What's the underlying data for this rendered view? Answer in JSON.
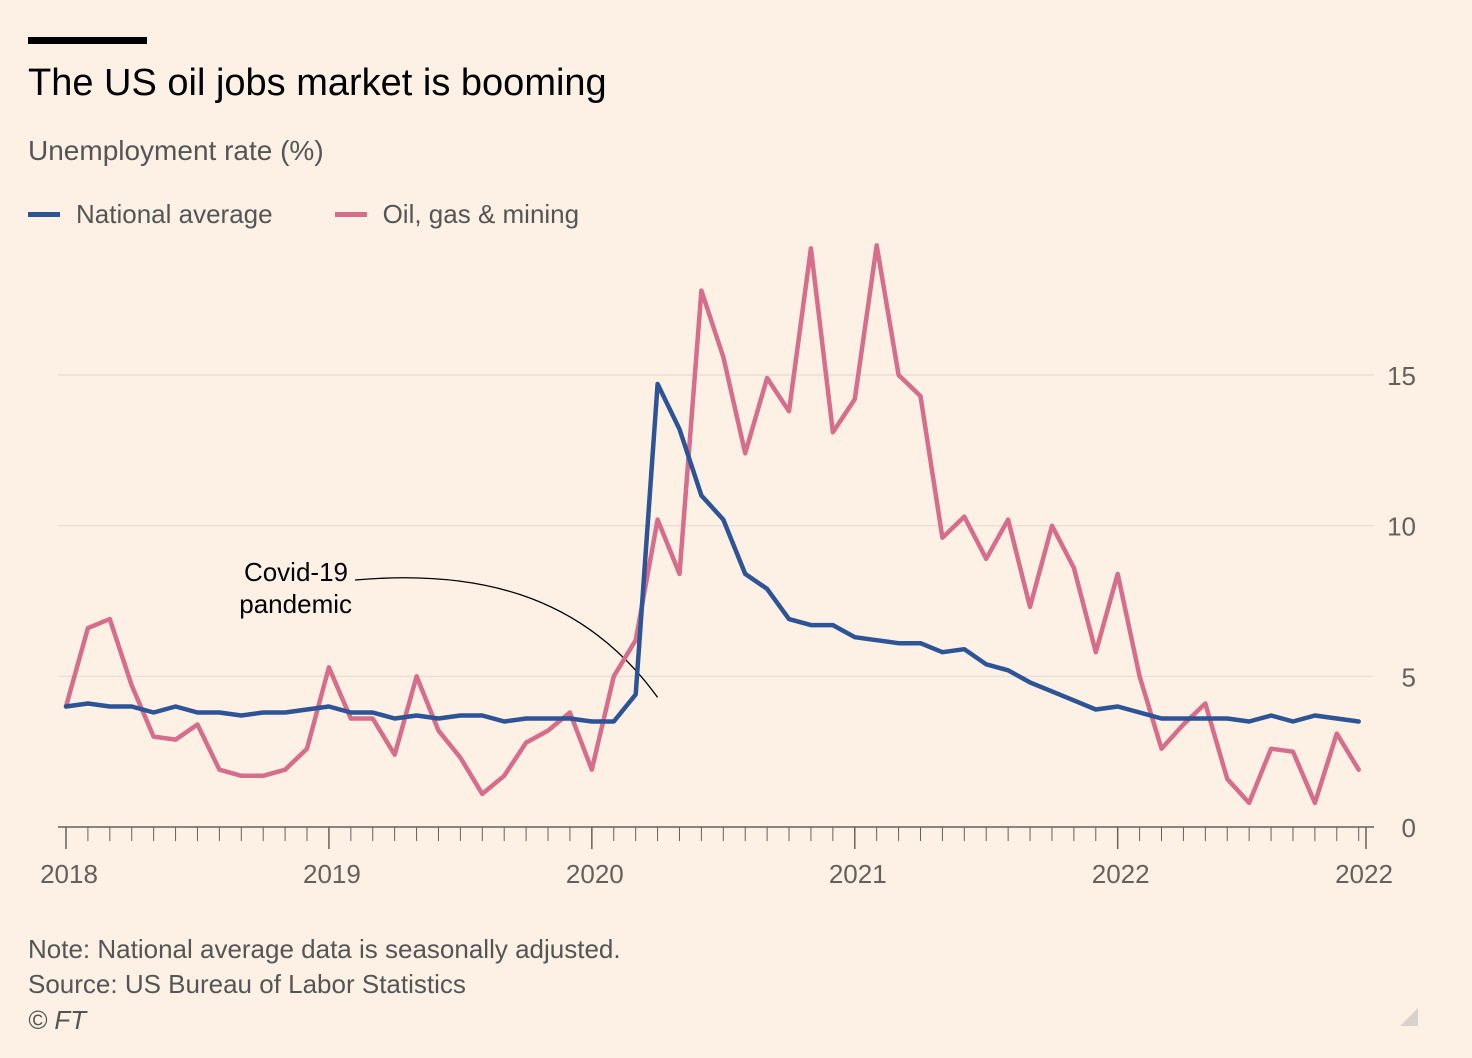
{
  "header": {
    "title": "The US oil jobs market is booming",
    "subtitle": "Unemployment rate (%)"
  },
  "legend": {
    "items": [
      {
        "label": "National average",
        "color": "#2d5496"
      },
      {
        "label": "Oil, gas & mining",
        "color": "#d66d8b"
      }
    ]
  },
  "annotation": {
    "line1": "Covid-19",
    "line2": "pandemic",
    "x": 81,
    "y": 4.3
  },
  "footer": {
    "note": "Note: National average data is seasonally adjusted.",
    "source": "Source: US Bureau of Labor Statistics",
    "copyright": "© FT"
  },
  "chart_data": {
    "type": "line",
    "x_unit": "months since Jan 2018",
    "x_ticks": [
      {
        "value": 0,
        "label": "2018"
      },
      {
        "value": 36,
        "label": "2019"
      },
      {
        "value": 72,
        "label": "2020"
      },
      {
        "value": 108,
        "label": "2021"
      },
      {
        "value": 144,
        "label": "2022"
      },
      {
        "value": 178,
        "label": "2022"
      }
    ],
    "xlim": [
      0,
      178
    ],
    "ylim": [
      0,
      20
    ],
    "y_ticks": [
      0,
      5,
      10,
      15
    ],
    "y_axis_side": "right",
    "grid": true,
    "series": [
      {
        "name": "National average",
        "color": "#2d5496",
        "x": [
          0,
          3,
          6,
          9,
          12,
          15,
          18,
          21,
          24,
          27,
          30,
          33,
          36,
          39,
          42,
          45,
          48,
          51,
          54,
          57,
          60,
          63,
          66,
          69,
          72,
          75,
          78,
          81,
          84,
          87,
          90,
          93,
          96,
          99,
          102,
          105,
          108,
          111,
          114,
          117,
          120,
          123,
          126,
          129,
          132,
          135,
          138,
          141,
          144,
          147,
          150,
          153,
          156,
          159,
          162,
          165,
          168,
          171,
          174,
          177
        ],
        "y": [
          4.0,
          4.1,
          4.0,
          4.0,
          3.8,
          4.0,
          3.8,
          3.8,
          3.7,
          3.8,
          3.8,
          3.9,
          4.0,
          3.8,
          3.8,
          3.6,
          3.7,
          3.6,
          3.7,
          3.7,
          3.5,
          3.6,
          3.6,
          3.6,
          3.5,
          3.5,
          4.4,
          14.7,
          13.2,
          11.0,
          10.2,
          8.4,
          7.9,
          6.9,
          6.7,
          6.7,
          6.3,
          6.2,
          6.1,
          6.1,
          5.8,
          5.9,
          5.4,
          5.2,
          4.8,
          4.5,
          4.2,
          3.9,
          4.0,
          3.8,
          3.6,
          3.6,
          3.6,
          3.6,
          3.5,
          3.7,
          3.5,
          3.7,
          3.6,
          3.5
        ]
      },
      {
        "name": "Oil, gas & mining",
        "color": "#d66d8b",
        "x": [
          0,
          3,
          6,
          9,
          12,
          15,
          18,
          21,
          24,
          27,
          30,
          33,
          36,
          39,
          42,
          45,
          48,
          51,
          54,
          57,
          60,
          63,
          66,
          69,
          72,
          75,
          78,
          81,
          84,
          87,
          90,
          93,
          96,
          99,
          102,
          105,
          108,
          111,
          114,
          117,
          120,
          123,
          126,
          129,
          132,
          135,
          138,
          141,
          144,
          147,
          150,
          153,
          156,
          159,
          162,
          165,
          168,
          171,
          174,
          177
        ],
        "y": [
          4.0,
          6.6,
          6.9,
          4.7,
          3.0,
          2.9,
          3.4,
          1.9,
          1.7,
          1.7,
          1.9,
          2.6,
          5.3,
          3.6,
          3.6,
          2.4,
          5.0,
          3.2,
          2.3,
          1.1,
          1.7,
          2.8,
          3.2,
          3.8,
          1.9,
          5.0,
          6.2,
          10.2,
          8.4,
          17.8,
          15.6,
          12.4,
          14.9,
          13.8,
          19.2,
          13.1,
          14.2,
          19.3,
          15.0,
          14.3,
          9.6,
          10.3,
          8.9,
          10.2,
          7.3,
          10.0,
          8.6,
          5.8,
          8.4,
          5.0,
          2.6,
          3.4,
          4.1,
          1.6,
          0.8,
          2.6,
          2.5,
          0.8,
          3.1,
          1.9
        ]
      }
    ]
  }
}
